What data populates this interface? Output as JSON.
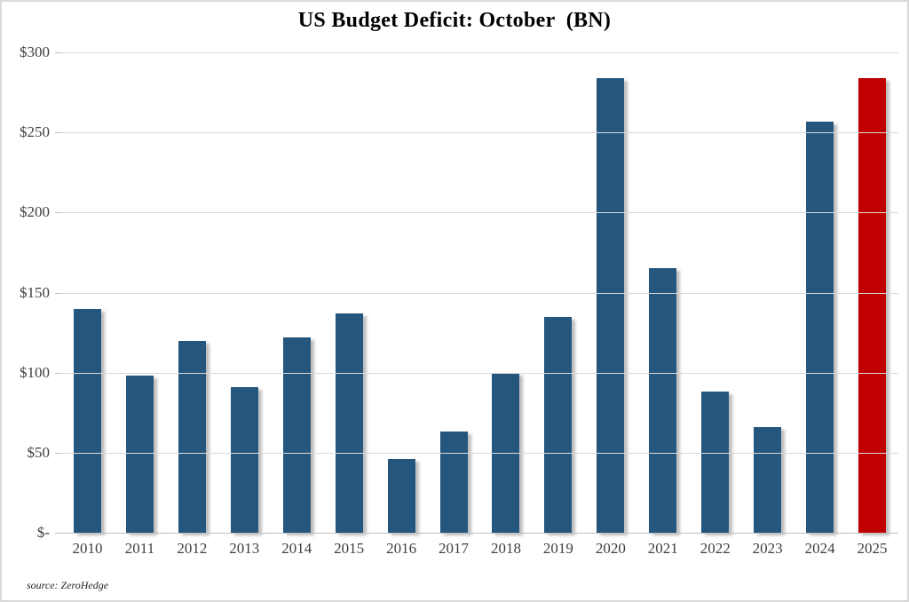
{
  "page": {
    "source": "source: ZeroHedge"
  },
  "colors": {
    "bar_default": "#25567d",
    "bar_highlight": "#c00000",
    "gridline": "#d9d9d9",
    "axis_text": "#3f3f3f",
    "title_text": "#000000"
  },
  "chart_data": {
    "type": "bar",
    "title": "US Budget Deficit: October  (BN)",
    "categories": [
      "2010",
      "2011",
      "2012",
      "2013",
      "2014",
      "2015",
      "2016",
      "2017",
      "2018",
      "2019",
      "2020",
      "2021",
      "2022",
      "2023",
      "2024",
      "2025"
    ],
    "values": [
      140,
      98,
      120,
      91,
      122,
      137,
      46,
      63,
      100,
      135,
      284,
      165,
      88,
      66,
      257,
      284
    ],
    "highlight_category": "2025",
    "y_ticks": [
      "$300",
      "$250",
      "$200",
      "$150",
      "$100",
      "$50",
      "$-"
    ],
    "ylim": [
      0,
      300
    ],
    "xlabel": "",
    "ylabel": "",
    "grid": "horizontal",
    "legend": "none",
    "source": "source: ZeroHedge"
  }
}
